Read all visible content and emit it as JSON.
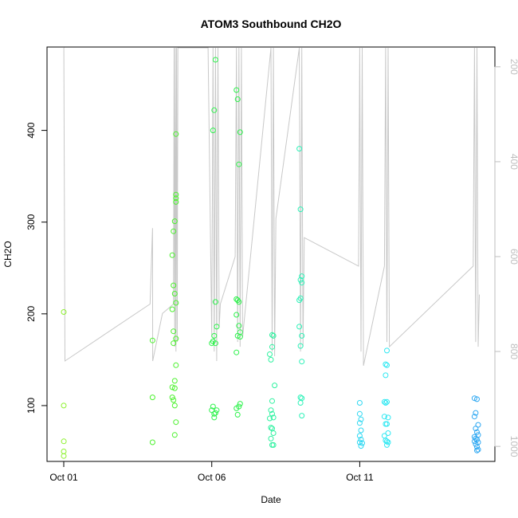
{
  "chart_data": {
    "type": "scatter",
    "title": "ATOM3 Southbound CH2O",
    "xlabel": "Date",
    "ylabel": "CH2O",
    "xlim": [
      "2017-10-01",
      "2017-10-15"
    ],
    "ylim": [
      40,
      490
    ],
    "x_ticks": [
      {
        "date": "2017-10-01",
        "label": "Oct 01"
      },
      {
        "date": "2017-10-06",
        "label": "Oct 06"
      },
      {
        "date": "2017-10-11",
        "label": "Oct 11"
      }
    ],
    "y_ticks": [
      100,
      200,
      300,
      400
    ],
    "y2": {
      "label": "",
      "ticks": [
        200,
        400,
        600,
        800,
        1000
      ],
      "lim": [
        1030,
        160
      ],
      "reversed": true,
      "color": "#bebebe"
    },
    "grid": false,
    "legend": "none",
    "colors": {
      "axis": "#000000",
      "pressure_line": "#c8c8c8",
      "point_color_scale": "latitude rainbow, yellow-green (north) to blue (south)"
    },
    "series": [
      {
        "color": "#8df22e",
        "points": [
          [
            "2017-10-01 00:00",
            202
          ],
          [
            "2017-10-01 00:00",
            100
          ],
          [
            "2017-10-01 00:05",
            61
          ],
          [
            "2017-10-01 00:00",
            50
          ],
          [
            "2017-10-01 00:00",
            45
          ]
        ]
      },
      {
        "color": "#4cf22e",
        "points": [
          [
            "2017-10-04 00:00",
            171
          ],
          [
            "2017-10-04 00:00",
            109
          ],
          [
            "2017-10-04 00:00",
            60
          ],
          [
            "2017-10-04 19:00",
            396
          ],
          [
            "2017-10-04 19:00",
            330
          ],
          [
            "2017-10-04 19:00",
            326
          ],
          [
            "2017-10-04 19:00",
            322
          ],
          [
            "2017-10-04 18:00",
            301
          ],
          [
            "2017-10-04 17:00",
            290
          ],
          [
            "2017-10-04 16:00",
            264
          ],
          [
            "2017-10-04 17:00",
            231
          ],
          [
            "2017-10-04 18:00",
            222
          ],
          [
            "2017-10-04 19:00",
            212
          ],
          [
            "2017-10-04 16:00",
            205
          ],
          [
            "2017-10-04 17:00",
            181
          ],
          [
            "2017-10-04 19:00",
            173
          ],
          [
            "2017-10-04 17:00",
            168
          ],
          [
            "2017-10-04 19:00",
            144
          ],
          [
            "2017-10-04 18:00",
            127
          ],
          [
            "2017-10-04 16:00",
            120
          ],
          [
            "2017-10-04 18:00",
            119
          ],
          [
            "2017-10-04 16:00",
            109
          ],
          [
            "2017-10-04 17:00",
            106
          ],
          [
            "2017-10-04 18:00",
            100
          ],
          [
            "2017-10-04 19:00",
            82
          ],
          [
            "2017-10-04 18:00",
            68
          ]
        ]
      },
      {
        "color": "#2ef24c",
        "points": [
          [
            "2017-10-06 03:00",
            477
          ],
          [
            "2017-10-06 02:00",
            422
          ],
          [
            "2017-10-06 01:00",
            400
          ],
          [
            "2017-10-06 03:00",
            213
          ],
          [
            "2017-10-06 04:00",
            186
          ],
          [
            "2017-10-06 02:00",
            176
          ],
          [
            "2017-10-06 01:00",
            170
          ],
          [
            "2017-10-06 00:00",
            168
          ],
          [
            "2017-10-06 03:00",
            168
          ],
          [
            "2017-10-06 01:00",
            99
          ],
          [
            "2017-10-06 00:00",
            95
          ],
          [
            "2017-10-06 04:00",
            95
          ],
          [
            "2017-10-06 03:00",
            92
          ],
          [
            "2017-10-06 02:00",
            91
          ],
          [
            "2017-10-06 02:00",
            87
          ],
          [
            "2017-10-06 20:00",
            444
          ],
          [
            "2017-10-06 21:00",
            434
          ],
          [
            "2017-10-06 23:00",
            398
          ],
          [
            "2017-10-06 22:00",
            363
          ],
          [
            "2017-10-06 20:00",
            216
          ],
          [
            "2017-10-06 21:00",
            215
          ],
          [
            "2017-10-06 22:00",
            213
          ],
          [
            "2017-10-06 20:00",
            199
          ],
          [
            "2017-10-06 22:00",
            187
          ],
          [
            "2017-10-06 23:00",
            180
          ],
          [
            "2017-10-06 21:00",
            176
          ],
          [
            "2017-10-06 23:00",
            175
          ],
          [
            "2017-10-06 20:00",
            158
          ],
          [
            "2017-10-06 23:00",
            102
          ],
          [
            "2017-10-06 22:00",
            99
          ],
          [
            "2017-10-06 20:00",
            97
          ],
          [
            "2017-10-06 21:00",
            90
          ]
        ]
      },
      {
        "color": "#2ef2a0",
        "points": [
          [
            "2017-10-08 01:00",
            177
          ],
          [
            "2017-10-08 02:00",
            176
          ],
          [
            "2017-10-08 01:00",
            164
          ],
          [
            "2017-10-07 23:00",
            156
          ],
          [
            "2017-10-08 00:00",
            150
          ],
          [
            "2017-10-08 03:00",
            122
          ],
          [
            "2017-10-08 01:00",
            105
          ],
          [
            "2017-10-08 00:00",
            95
          ],
          [
            "2017-10-08 01:00",
            91
          ],
          [
            "2017-10-08 02:00",
            87
          ],
          [
            "2017-10-07 23:00",
            86
          ],
          [
            "2017-10-08 00:00",
            76
          ],
          [
            "2017-10-08 01:00",
            75
          ],
          [
            "2017-10-08 02:00",
            70
          ],
          [
            "2017-10-08 00:00",
            64
          ],
          [
            "2017-10-08 02:00",
            57
          ],
          [
            "2017-10-08 01:00",
            57
          ]
        ]
      },
      {
        "color": "#2ef2b8",
        "points": [
          [
            "2017-10-08 23:00",
            380
          ],
          [
            "2017-10-09 00:00",
            314
          ],
          [
            "2017-10-09 01:00",
            241
          ],
          [
            "2017-10-09 00:00",
            237
          ],
          [
            "2017-10-09 01:00",
            234
          ],
          [
            "2017-10-08 23:00",
            215
          ],
          [
            "2017-10-09 00:00",
            217
          ],
          [
            "2017-10-08 23:00",
            186
          ],
          [
            "2017-10-09 01:00",
            176
          ],
          [
            "2017-10-09 00:00",
            165
          ],
          [
            "2017-10-09 01:00",
            148
          ],
          [
            "2017-10-09 00:00",
            109
          ],
          [
            "2017-10-09 01:00",
            108
          ],
          [
            "2017-10-09 00:00",
            103
          ],
          [
            "2017-10-09 01:00",
            89
          ]
        ]
      },
      {
        "color": "#2ed8f2",
        "points": [
          [
            "2017-10-11 00:00",
            103
          ],
          [
            "2017-10-11 00:00",
            91
          ],
          [
            "2017-10-11 01:00",
            85
          ],
          [
            "2017-10-11 00:00",
            81
          ],
          [
            "2017-10-11 01:00",
            73
          ],
          [
            "2017-10-11 00:00",
            67
          ],
          [
            "2017-10-11 01:00",
            63
          ],
          [
            "2017-10-11 00:00",
            60
          ],
          [
            "2017-10-11 02:00",
            59
          ],
          [
            "2017-10-11 01:00",
            56
          ]
        ]
      },
      {
        "color": "#2ee8f2",
        "points": [
          [
            "2017-10-11 22:00",
            160
          ],
          [
            "2017-10-11 21:00",
            145
          ],
          [
            "2017-10-11 22:00",
            144
          ],
          [
            "2017-10-11 21:00",
            133
          ],
          [
            "2017-10-11 20:00",
            104
          ],
          [
            "2017-10-11 21:00",
            103
          ],
          [
            "2017-10-11 22:00",
            104
          ],
          [
            "2017-10-11 20:00",
            88
          ],
          [
            "2017-10-11 23:00",
            87
          ],
          [
            "2017-10-11 21:00",
            80
          ],
          [
            "2017-10-11 22:00",
            80
          ],
          [
            "2017-10-11 23:00",
            70
          ],
          [
            "2017-10-11 20:00",
            67
          ],
          [
            "2017-10-11 21:00",
            62
          ],
          [
            "2017-10-11 22:00",
            61
          ],
          [
            "2017-10-11 23:00",
            60
          ],
          [
            "2017-10-11 22:00",
            57
          ]
        ]
      },
      {
        "color": "#2ea8f2",
        "points": [
          [
            "2017-10-14 21:00",
            108
          ],
          [
            "2017-10-14 23:00",
            107
          ],
          [
            "2017-10-14 22:00",
            92
          ],
          [
            "2017-10-14 21:00",
            88
          ],
          [
            "2017-10-15 00:00",
            79
          ],
          [
            "2017-10-14 22:00",
            75
          ],
          [
            "2017-10-14 23:00",
            71
          ],
          [
            "2017-10-15 00:00",
            68
          ],
          [
            "2017-10-14 21:00",
            66
          ],
          [
            "2017-10-14 22:00",
            64
          ],
          [
            "2017-10-14 23:00",
            63
          ],
          [
            "2017-10-14 21:00",
            61
          ],
          [
            "2017-10-15 00:00",
            60
          ],
          [
            "2017-10-14 22:00",
            58
          ],
          [
            "2017-10-14 23:00",
            55
          ],
          [
            "2017-10-15 00:00",
            52
          ],
          [
            "2017-10-14 23:00",
            51
          ]
        ]
      }
    ],
    "pressure_trace": {
      "color": "#c8c8c8",
      "axis": "y2",
      "points": [
        [
          "2017-10-01 00:00",
          160
        ],
        [
          "2017-10-01 00:05",
          160
        ],
        [
          "2017-10-01 01:00",
          820
        ],
        [
          "2017-10-03 22:00",
          700
        ],
        [
          "2017-10-04 00:00",
          540
        ],
        [
          "2017-10-04 00:05",
          820
        ],
        [
          "2017-10-04 08:00",
          720
        ],
        [
          "2017-10-04 17:00",
          700
        ],
        [
          "2017-10-04 17:30",
          160
        ],
        [
          "2017-10-04 18:00",
          790
        ],
        [
          "2017-10-04 18:30",
          160
        ],
        [
          "2017-10-04 19:00",
          800
        ],
        [
          "2017-10-04 19:30",
          160
        ],
        [
          "2017-10-04 20:00",
          780
        ],
        [
          "2017-10-04 20:30",
          160
        ],
        [
          "2017-10-05 20:00",
          160
        ],
        [
          "2017-10-05 21:00",
          160
        ],
        [
          "2017-10-06 00:00",
          770
        ],
        [
          "2017-10-06 01:00",
          160
        ],
        [
          "2017-10-06 02:00",
          800
        ],
        [
          "2017-10-06 03:00",
          160
        ],
        [
          "2017-10-06 04:00",
          820
        ],
        [
          "2017-10-06 05:00",
          160
        ],
        [
          "2017-10-06 06:00",
          750
        ],
        [
          "2017-10-06 07:00",
          700
        ],
        [
          "2017-10-06 19:00",
          600
        ],
        [
          "2017-10-06 20:00",
          160
        ],
        [
          "2017-10-06 21:00",
          780
        ],
        [
          "2017-10-06 22:00",
          160
        ],
        [
          "2017-10-06 23:00",
          790
        ],
        [
          "2017-10-07 00:00",
          160
        ],
        [
          "2017-10-07 01:00",
          770
        ],
        [
          "2017-10-08 00:00",
          160
        ],
        [
          "2017-10-08 01:00",
          800
        ],
        [
          "2017-10-08 02:00",
          160
        ],
        [
          "2017-10-08 03:00",
          810
        ],
        [
          "2017-10-08 04:00",
          520
        ],
        [
          "2017-10-08 23:00",
          160
        ],
        [
          "2017-10-09 00:00",
          800
        ],
        [
          "2017-10-09 01:00",
          160
        ],
        [
          "2017-10-09 02:00",
          790
        ],
        [
          "2017-10-09 03:00",
          560
        ],
        [
          "2017-10-10 23:00",
          620
        ],
        [
          "2017-10-11 00:00",
          160
        ],
        [
          "2017-10-11 01:00",
          800
        ],
        [
          "2017-10-11 02:00",
          160
        ],
        [
          "2017-10-11 03:00",
          830
        ],
        [
          "2017-10-11 20:00",
          620
        ],
        [
          "2017-10-11 21:00",
          160
        ],
        [
          "2017-10-11 22:00",
          780
        ],
        [
          "2017-10-11 23:00",
          160
        ],
        [
          "2017-10-12 00:00",
          790
        ],
        [
          "2017-10-14 20:00",
          620
        ],
        [
          "2017-10-14 21:00",
          160
        ],
        [
          "2017-10-14 22:00",
          780
        ],
        [
          "2017-10-14 23:00",
          160
        ],
        [
          "2017-10-15 00:00",
          790
        ],
        [
          "2017-10-15 01:00",
          680
        ]
      ]
    }
  }
}
